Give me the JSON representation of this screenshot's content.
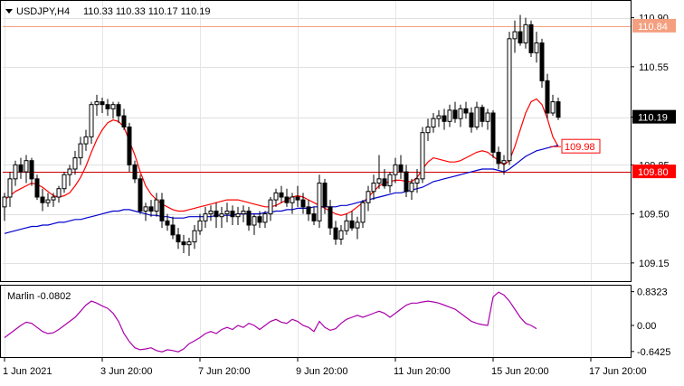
{
  "chart_data": [
    {
      "type": "candlestick",
      "symbol": "USDJPY,H4",
      "ohlc_header": "110.33 110.33 110.17 110.19",
      "y_ticks": [
        "110.90",
        "110.55",
        "110.19",
        "109.85",
        "109.50",
        "109.15"
      ],
      "y_tick_values": [
        110.9,
        110.55,
        110.19,
        109.85,
        109.5,
        109.15
      ],
      "ylim": [
        109.02,
        111.02
      ],
      "price_labels": [
        {
          "text": "110.84",
          "value": 110.84,
          "color": "#f4a080"
        },
        {
          "text": "110.19",
          "value": 110.19,
          "color": "#ffffff"
        },
        {
          "text": "109.98",
          "value": 109.98,
          "color": "#ff0000"
        },
        {
          "text": "109.80",
          "value": 109.8,
          "color": "#ff0000"
        }
      ],
      "hlines": [
        {
          "value": 110.84,
          "color": "#f4a080"
        },
        {
          "value": 109.8,
          "color": "#cc0000"
        }
      ],
      "x_labels": [
        "1 Jun 2021",
        "3 Jun 20:00",
        "7 Jun 20:00",
        "9 Jun 20:00",
        "11 Jun 20:00",
        "15 Jun 20:00",
        "17 Jun 20:00"
      ],
      "x_label_bars": [
        0,
        18,
        36,
        54,
        72,
        90,
        108
      ],
      "candles": [
        [
          109.55,
          109.65,
          109.45,
          109.62
        ],
        [
          109.62,
          109.8,
          109.55,
          109.75
        ],
        [
          109.75,
          109.88,
          109.7,
          109.85
        ],
        [
          109.85,
          109.9,
          109.75,
          109.8
        ],
        [
          109.8,
          109.92,
          109.72,
          109.88
        ],
        [
          109.88,
          109.9,
          109.7,
          109.75
        ],
        [
          109.75,
          109.78,
          109.6,
          109.62
        ],
        [
          109.62,
          109.68,
          109.52,
          109.58
        ],
        [
          109.58,
          109.65,
          109.55,
          109.6
        ],
        [
          109.6,
          109.65,
          109.55,
          109.62
        ],
        [
          109.62,
          109.7,
          109.58,
          109.68
        ],
        [
          109.68,
          109.8,
          109.65,
          109.78
        ],
        [
          109.78,
          109.85,
          109.7,
          109.82
        ],
        [
          109.82,
          109.95,
          109.78,
          109.9
        ],
        [
          109.9,
          110.05,
          109.85,
          110.0
        ],
        [
          110.0,
          110.1,
          109.95,
          110.05
        ],
        [
          110.05,
          110.3,
          110.0,
          110.28
        ],
        [
          110.28,
          110.35,
          110.2,
          110.3
        ],
        [
          110.3,
          110.33,
          110.22,
          110.28
        ],
        [
          110.28,
          110.32,
          110.2,
          110.25
        ],
        [
          110.25,
          110.3,
          110.18,
          110.28
        ],
        [
          110.28,
          110.3,
          110.15,
          110.2
        ],
        [
          110.2,
          110.25,
          110.1,
          110.12
        ],
        [
          110.12,
          110.15,
          109.8,
          109.85
        ],
        [
          109.85,
          109.88,
          109.72,
          109.75
        ],
        [
          109.75,
          109.78,
          109.5,
          109.52
        ],
        [
          109.52,
          109.58,
          109.45,
          109.55
        ],
        [
          109.55,
          109.6,
          109.48,
          109.52
        ],
        [
          109.52,
          109.65,
          109.48,
          109.6
        ],
        [
          109.6,
          109.65,
          109.4,
          109.45
        ],
        [
          109.45,
          109.5,
          109.38,
          109.42
        ],
        [
          109.42,
          109.48,
          109.32,
          109.35
        ],
        [
          109.35,
          109.4,
          109.25,
          109.3
        ],
        [
          109.3,
          109.35,
          109.22,
          109.28
        ],
        [
          109.28,
          109.33,
          109.2,
          109.3
        ],
        [
          109.3,
          109.42,
          109.25,
          109.38
        ],
        [
          109.38,
          109.5,
          109.35,
          109.45
        ],
        [
          109.45,
          109.55,
          109.4,
          109.5
        ],
        [
          109.5,
          109.56,
          109.45,
          109.52
        ],
        [
          109.52,
          109.58,
          109.4,
          109.48
        ],
        [
          109.48,
          109.55,
          109.4,
          109.5
        ],
        [
          109.5,
          109.58,
          109.44,
          109.52
        ],
        [
          109.52,
          109.56,
          109.42,
          109.48
        ],
        [
          109.48,
          109.55,
          109.42,
          109.5
        ],
        [
          109.5,
          109.56,
          109.44,
          109.52
        ],
        [
          109.52,
          109.55,
          109.38,
          109.42
        ],
        [
          109.42,
          109.5,
          109.35,
          109.48
        ],
        [
          109.48,
          109.52,
          109.4,
          109.44
        ],
        [
          109.44,
          109.52,
          109.4,
          109.5
        ],
        [
          109.5,
          109.62,
          109.45,
          109.6
        ],
        [
          109.6,
          109.68,
          109.55,
          109.65
        ],
        [
          109.65,
          109.7,
          109.58,
          109.62
        ],
        [
          109.62,
          109.68,
          109.55,
          109.58
        ],
        [
          109.58,
          109.65,
          109.5,
          109.62
        ],
        [
          109.62,
          109.7,
          109.55,
          109.6
        ],
        [
          109.6,
          109.65,
          109.5,
          109.55
        ],
        [
          109.55,
          109.6,
          109.45,
          109.5
        ],
        [
          109.5,
          109.55,
          109.42,
          109.45
        ],
        [
          109.45,
          109.78,
          109.4,
          109.72
        ],
        [
          109.72,
          109.75,
          109.5,
          109.55
        ],
        [
          109.55,
          109.6,
          109.35,
          109.4
        ],
        [
          109.4,
          109.45,
          109.28,
          109.32
        ],
        [
          109.32,
          109.42,
          109.28,
          109.38
        ],
        [
          109.38,
          109.5,
          109.35,
          109.45
        ],
        [
          109.45,
          109.52,
          109.38,
          109.4
        ],
        [
          109.4,
          109.48,
          109.32,
          109.44
        ],
        [
          109.44,
          109.6,
          109.4,
          109.58
        ],
        [
          109.58,
          109.7,
          109.52,
          109.66
        ],
        [
          109.66,
          109.78,
          109.6,
          109.72
        ],
        [
          109.72,
          109.92,
          109.68,
          109.75
        ],
        [
          109.75,
          109.82,
          109.68,
          109.7
        ],
        [
          109.7,
          109.8,
          109.65,
          109.78
        ],
        [
          109.78,
          109.9,
          109.72,
          109.85
        ],
        [
          109.85,
          109.92,
          109.75,
          109.8
        ],
        [
          109.8,
          109.85,
          109.62,
          109.66
        ],
        [
          109.66,
          109.75,
          109.6,
          109.72
        ],
        [
          109.72,
          109.82,
          109.65,
          109.75
        ],
        [
          109.75,
          110.12,
          109.72,
          110.08
        ],
        [
          110.08,
          110.18,
          110.02,
          110.12
        ],
        [
          110.12,
          110.22,
          110.08,
          110.18
        ],
        [
          110.18,
          110.24,
          110.12,
          110.2
        ],
        [
          110.2,
          110.25,
          110.1,
          110.16
        ],
        [
          110.16,
          110.28,
          110.12,
          110.24
        ],
        [
          110.24,
          110.3,
          110.15,
          110.18
        ],
        [
          110.18,
          110.28,
          110.12,
          110.25
        ],
        [
          110.25,
          110.3,
          110.18,
          110.22
        ],
        [
          110.22,
          110.26,
          110.08,
          110.12
        ],
        [
          110.12,
          110.3,
          110.1,
          110.26
        ],
        [
          110.26,
          110.28,
          110.12,
          110.16
        ],
        [
          110.16,
          110.25,
          110.1,
          110.22
        ],
        [
          110.22,
          110.24,
          109.9,
          109.94
        ],
        [
          109.94,
          109.98,
          109.82,
          109.86
        ],
        [
          109.86,
          109.92,
          109.78,
          109.88
        ],
        [
          109.88,
          110.8,
          109.85,
          110.75
        ],
        [
          110.75,
          110.88,
          110.65,
          110.8
        ],
        [
          110.8,
          110.92,
          110.7,
          110.72
        ],
        [
          110.72,
          110.9,
          110.68,
          110.85
        ],
        [
          110.85,
          110.88,
          110.62,
          110.65
        ],
        [
          110.65,
          110.8,
          110.58,
          110.72
        ],
        [
          110.72,
          110.75,
          110.4,
          110.45
        ],
        [
          110.45,
          110.5,
          110.18,
          110.22
        ],
        [
          110.22,
          110.35,
          110.2,
          110.3
        ],
        [
          110.3,
          110.33,
          110.17,
          110.19
        ]
      ],
      "series": [
        {
          "name": "",
          "color": "#ff0000",
          "values": [
            109.6,
            109.63,
            109.66,
            109.68,
            109.7,
            109.72,
            109.71,
            109.69,
            109.66,
            109.63,
            109.62,
            109.63,
            109.65,
            109.7,
            109.76,
            109.84,
            109.94,
            110.03,
            110.1,
            110.15,
            110.17,
            110.16,
            110.12,
            110.02,
            109.92,
            109.8,
            109.7,
            109.64,
            109.6,
            109.57,
            109.55,
            109.53,
            109.52,
            109.52,
            109.53,
            109.54,
            109.55,
            109.56,
            109.57,
            109.58,
            109.59,
            109.6,
            109.6,
            109.6,
            109.59,
            109.58,
            109.57,
            109.56,
            109.55,
            109.55,
            109.56,
            109.58,
            109.6,
            109.62,
            109.63,
            109.62,
            109.6,
            109.58,
            109.56,
            109.54,
            109.52,
            109.5,
            109.49,
            109.5,
            109.52,
            109.55,
            109.58,
            109.62,
            109.66,
            109.7,
            109.72,
            109.73,
            109.74,
            109.74,
            109.73,
            109.73,
            109.76,
            109.82,
            109.87,
            109.9,
            109.89,
            109.88,
            109.87,
            109.87,
            109.88,
            109.9,
            109.92,
            109.94,
            109.95,
            109.94,
            109.91,
            109.88,
            109.85,
            109.88,
            109.98,
            110.1,
            110.22,
            110.3,
            110.32,
            110.28,
            110.18,
            110.05,
            109.98
          ]
        },
        {
          "name": "",
          "color": "#0000cc",
          "values": [
            109.36,
            109.37,
            109.38,
            109.39,
            109.4,
            109.41,
            109.41,
            109.42,
            109.42,
            109.43,
            109.44,
            109.44,
            109.45,
            109.46,
            109.46,
            109.47,
            109.48,
            109.49,
            109.5,
            109.51,
            109.52,
            109.52,
            109.53,
            109.53,
            109.52,
            109.51,
            109.5,
            109.49,
            109.49,
            109.48,
            109.48,
            109.47,
            109.47,
            109.47,
            109.48,
            109.48,
            109.48,
            109.48,
            109.48,
            109.49,
            109.49,
            109.49,
            109.49,
            109.5,
            109.5,
            109.5,
            109.5,
            109.5,
            109.51,
            109.51,
            109.52,
            109.52,
            109.53,
            109.53,
            109.54,
            109.54,
            109.54,
            109.55,
            109.55,
            109.55,
            109.55,
            109.55,
            109.56,
            109.56,
            109.57,
            109.58,
            109.59,
            109.6,
            109.61,
            109.62,
            109.63,
            109.64,
            109.65,
            109.65,
            109.66,
            109.67,
            109.68,
            109.69,
            109.71,
            109.73,
            109.74,
            109.75,
            109.76,
            109.77,
            109.78,
            109.79,
            109.8,
            109.81,
            109.82,
            109.82,
            109.82,
            109.81,
            109.8,
            109.82,
            109.85,
            109.88,
            109.91,
            109.93,
            109.95,
            109.96,
            109.97,
            109.98,
            109.99
          ]
        }
      ]
    },
    {
      "type": "line",
      "title": "Marlin -0.0802",
      "y_ticks": [
        "0.8323",
        "0.00",
        "-0.6425"
      ],
      "y_tick_values": [
        0.8323,
        0.0,
        -0.6425
      ],
      "ylim": [
        -0.78,
        0.98
      ],
      "series": [
        {
          "name": "",
          "color": "#aa00aa",
          "values": [
            -0.3,
            -0.2,
            -0.1,
            0.0,
            0.08,
            0.05,
            -0.05,
            -0.15,
            -0.2,
            -0.18,
            -0.1,
            0.0,
            0.1,
            0.2,
            0.35,
            0.5,
            0.6,
            0.55,
            0.48,
            0.42,
            0.3,
            0.1,
            -0.2,
            -0.4,
            -0.55,
            -0.6,
            -0.58,
            -0.55,
            -0.62,
            -0.65,
            -0.6,
            -0.62,
            -0.65,
            -0.58,
            -0.45,
            -0.38,
            -0.3,
            -0.2,
            -0.15,
            -0.2,
            -0.1,
            -0.05,
            -0.1,
            0.0,
            -0.05,
            0.05,
            0.0,
            -0.1,
            0.0,
            0.1,
            0.15,
            0.08,
            0.05,
            0.15,
            0.1,
            0.0,
            -0.05,
            -0.15,
            0.1,
            -0.05,
            -0.12,
            -0.08,
            0.05,
            0.15,
            0.2,
            0.25,
            0.2,
            0.25,
            0.3,
            0.35,
            0.3,
            0.2,
            0.3,
            0.4,
            0.5,
            0.55,
            0.55,
            0.58,
            0.6,
            0.58,
            0.55,
            0.5,
            0.45,
            0.4,
            0.3,
            0.2,
            0.1,
            0.05,
            0.02,
            0.0,
            0.7,
            0.82,
            0.75,
            0.6,
            0.4,
            0.2,
            0.05,
            0.0,
            -0.08
          ]
        }
      ]
    }
  ],
  "annotations": {
    "corner_label": "USDJPY,H4  110.33 110.33 110.17 110.19"
  }
}
